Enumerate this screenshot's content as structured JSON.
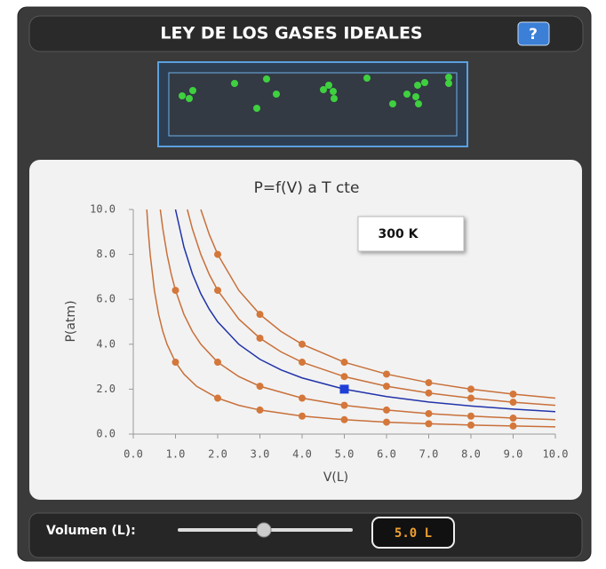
{
  "header": {
    "title": "LEY DE LOS GASES IDEALES",
    "help": "?"
  },
  "chart_data": {
    "type": "line",
    "title": "P=f(V) a T cte",
    "annotation": "300 K",
    "xlabel": "V(L)",
    "ylabel": "P(atm)",
    "xlim": [
      0,
      10
    ],
    "ylim": [
      0,
      10
    ],
    "xticks": [
      {
        "value": 0,
        "label": "0.0"
      },
      {
        "value": 1,
        "label": "1.0"
      },
      {
        "value": 2,
        "label": "2.0"
      },
      {
        "value": 3,
        "label": "3.0"
      },
      {
        "value": 4,
        "label": "4.0"
      },
      {
        "value": 5,
        "label": "5.0"
      },
      {
        "value": 6,
        "label": "6.0"
      },
      {
        "value": 7,
        "label": "7.0"
      },
      {
        "value": 8,
        "label": "8.0"
      },
      {
        "value": 9,
        "label": "9.0"
      },
      {
        "value": 10,
        "label": "10.0"
      }
    ],
    "yticks": [
      {
        "value": 0,
        "label": "0.0"
      },
      {
        "value": 2,
        "label": "2.0"
      },
      {
        "value": 4,
        "label": "4.0"
      },
      {
        "value": 6,
        "label": "6.0"
      },
      {
        "value": 8,
        "label": "8.0"
      },
      {
        "value": 10,
        "label": "10.0"
      }
    ],
    "series": [
      {
        "color": "#c8703a",
        "x": [
          1.6,
          1.8,
          2,
          2.5,
          3,
          3.5,
          4,
          5,
          6,
          7,
          8,
          9,
          10
        ],
        "values": [
          10,
          8.89,
          8,
          6.4,
          5.33,
          4.57,
          4,
          3.2,
          2.67,
          2.29,
          2,
          1.78,
          1.6
        ],
        "markers": {
          "x": [
            2,
            3,
            4,
            5,
            6,
            7,
            8,
            9
          ],
          "values": [
            8,
            5.33,
            4,
            3.2,
            2.67,
            2.29,
            2,
            1.78
          ]
        }
      },
      {
        "color": "#c8703a",
        "x": [
          1.28,
          1.4,
          1.6,
          1.8,
          2,
          2.5,
          3,
          3.5,
          4,
          5,
          6,
          7,
          8,
          9,
          10
        ],
        "values": [
          10,
          9.14,
          8,
          7.11,
          6.4,
          5.12,
          4.27,
          3.66,
          3.2,
          2.56,
          2.13,
          1.83,
          1.6,
          1.42,
          1.28
        ],
        "markers": {
          "x": [
            2,
            3,
            4,
            5,
            6,
            7,
            8,
            9
          ],
          "values": [
            6.4,
            4.27,
            3.2,
            2.56,
            2.13,
            1.83,
            1.6,
            1.42
          ]
        }
      },
      {
        "color": "#2233aa",
        "x": [
          1,
          1.2,
          1.4,
          1.6,
          1.8,
          2,
          2.5,
          3,
          3.5,
          4,
          5,
          6,
          7,
          8,
          9,
          10
        ],
        "values": [
          10,
          8.33,
          7.14,
          6.25,
          5.56,
          5,
          4,
          3.33,
          2.86,
          2.5,
          2,
          1.67,
          1.43,
          1.25,
          1.11,
          1
        ],
        "current": {
          "x": 5,
          "value": 2,
          "color": "#1f3fd6"
        }
      },
      {
        "color": "#c8703a",
        "x": [
          0.64,
          0.7,
          0.8,
          0.9,
          1,
          1.2,
          1.4,
          1.6,
          2,
          2.5,
          3,
          4,
          5,
          6,
          7,
          8,
          9,
          10
        ],
        "values": [
          10,
          9.14,
          8,
          7.11,
          6.4,
          5.33,
          4.57,
          4,
          3.2,
          2.56,
          2.13,
          1.6,
          1.28,
          1.07,
          0.91,
          0.8,
          0.71,
          0.64
        ],
        "markers": {
          "x": [
            1,
            2,
            3,
            4,
            5,
            6,
            7,
            8,
            9
          ],
          "values": [
            6.4,
            3.2,
            2.13,
            1.6,
            1.28,
            1.07,
            0.91,
            0.8,
            0.71
          ]
        }
      },
      {
        "color": "#c8703a",
        "x": [
          0.32,
          0.35,
          0.4,
          0.5,
          0.6,
          0.7,
          0.8,
          1,
          1.2,
          1.5,
          2,
          2.5,
          3,
          4,
          5,
          6,
          7,
          8,
          9,
          10
        ],
        "values": [
          10,
          9.14,
          8,
          6.4,
          5.33,
          4.57,
          4,
          3.2,
          2.67,
          2.13,
          1.6,
          1.28,
          1.07,
          0.8,
          0.64,
          0.53,
          0.46,
          0.4,
          0.36,
          0.32
        ],
        "markers": {
          "x": [
            1,
            2,
            3,
            4,
            5,
            6,
            7,
            8,
            9
          ],
          "values": [
            3.2,
            1.6,
            1.07,
            0.8,
            0.64,
            0.53,
            0.46,
            0.4,
            0.36
          ]
        }
      }
    ],
    "marker_color": "#d4773a"
  },
  "controls": {
    "label": "Volumen (L):",
    "display": "5.0 L"
  }
}
